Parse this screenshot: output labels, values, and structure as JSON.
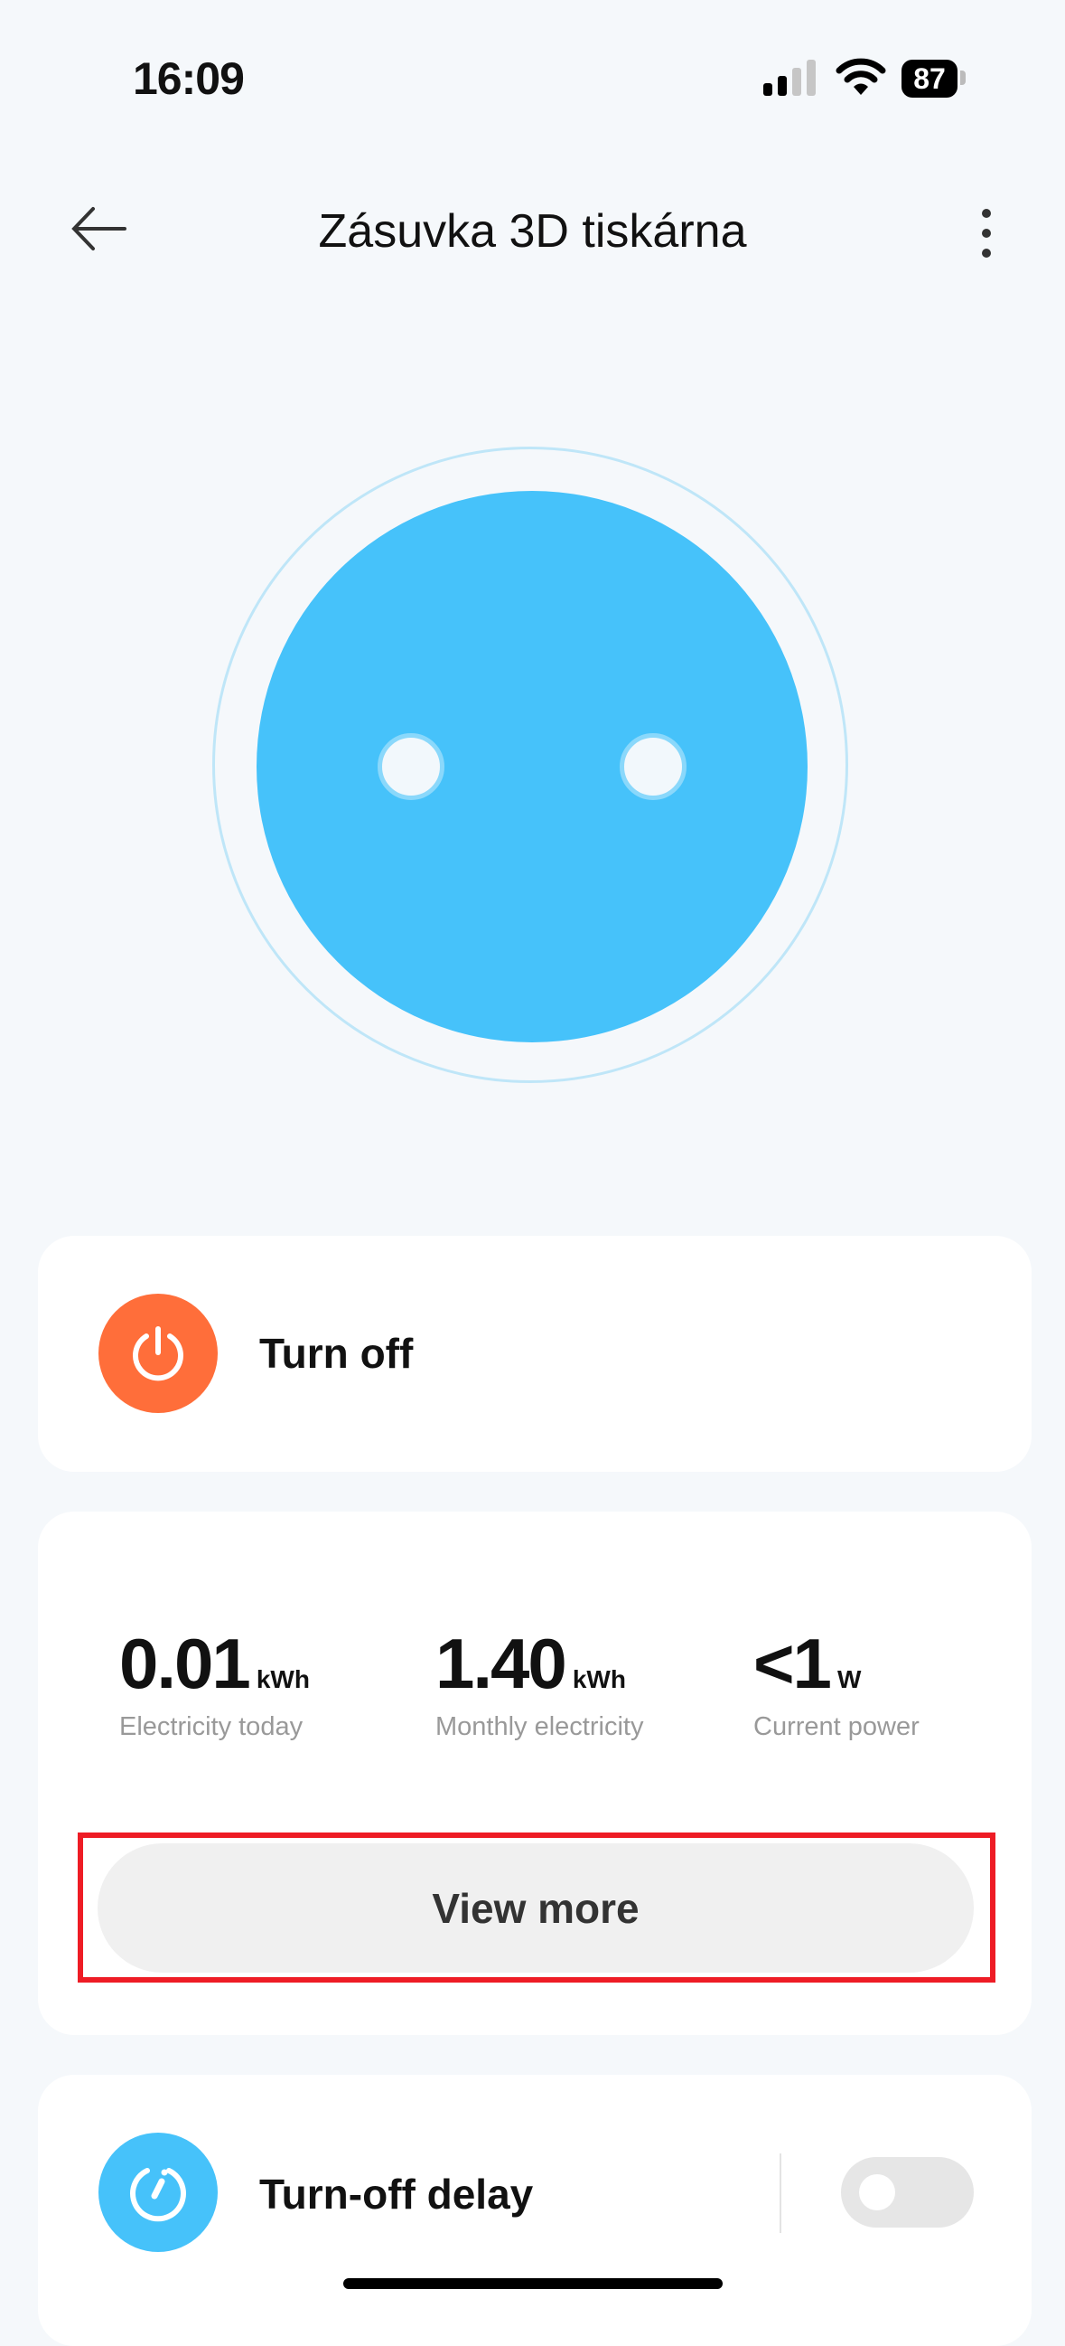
{
  "status_bar": {
    "time": "16:09",
    "battery": "87"
  },
  "header": {
    "title": "Zásuvka 3D tiskárna"
  },
  "power_card": {
    "label": "Turn off",
    "icon": "power-icon",
    "icon_color": "#ff6e3a"
  },
  "stats": [
    {
      "value": "0.01",
      "unit": "kWh",
      "label": "Electricity today"
    },
    {
      "value": "1.40",
      "unit": "kWh",
      "label": "Monthly electricity"
    },
    {
      "value": "<1",
      "unit": "W",
      "label": "Current power"
    }
  ],
  "view_more": {
    "label": "View more",
    "highlight_color": "#ee1c25"
  },
  "delay_card": {
    "label": "Turn-off delay",
    "icon": "timer-icon",
    "icon_color": "#46c2fa",
    "toggle_on": false
  },
  "colors": {
    "socket": "#46c2fa",
    "background": "#f5f8fb"
  }
}
